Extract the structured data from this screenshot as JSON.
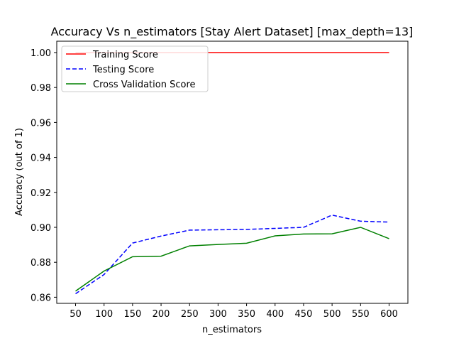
{
  "chart_data": {
    "type": "line",
    "title": "Accuracy Vs n_estimators [Stay Alert Dataset] [max_depth=13]",
    "xlabel": "n_estimators",
    "ylabel": "Accuracy (out of 1)",
    "x": [
      50,
      100,
      150,
      200,
      250,
      300,
      350,
      400,
      450,
      500,
      550,
      600
    ],
    "xticks": [
      "50",
      "100",
      "150",
      "200",
      "250",
      "300",
      "350",
      "400",
      "450",
      "500",
      "550",
      "600"
    ],
    "yticks": [
      "0.86",
      "0.88",
      "0.90",
      "0.92",
      "0.94",
      "0.96",
      "0.98",
      "1.00"
    ],
    "ytick_values": [
      0.86,
      0.88,
      0.9,
      0.92,
      0.94,
      0.96,
      0.98,
      1.0
    ],
    "xlim": [
      17,
      633
    ],
    "ylim": [
      0.8565,
      1.0065
    ],
    "grid": false,
    "legend_position": "top-left",
    "series": [
      {
        "name": "Training Score",
        "color": "#ff0000",
        "style": "solid",
        "values": [
          1.0,
          1.0,
          1.0,
          1.0,
          1.0,
          1.0,
          1.0,
          1.0,
          1.0,
          1.0,
          1.0,
          1.0
        ]
      },
      {
        "name": "Testing Score",
        "color": "#0000ff",
        "style": "dashed",
        "values": [
          0.862,
          0.873,
          0.891,
          0.895,
          0.8984,
          0.8986,
          0.8988,
          0.8994,
          0.9,
          0.907,
          0.9035,
          0.903
        ]
      },
      {
        "name": "Cross Validation Score",
        "color": "#008000",
        "style": "solid",
        "values": [
          0.8635,
          0.875,
          0.8832,
          0.8835,
          0.8894,
          0.8902,
          0.8909,
          0.8951,
          0.8962,
          0.8963,
          0.9,
          0.8935
        ]
      }
    ]
  }
}
